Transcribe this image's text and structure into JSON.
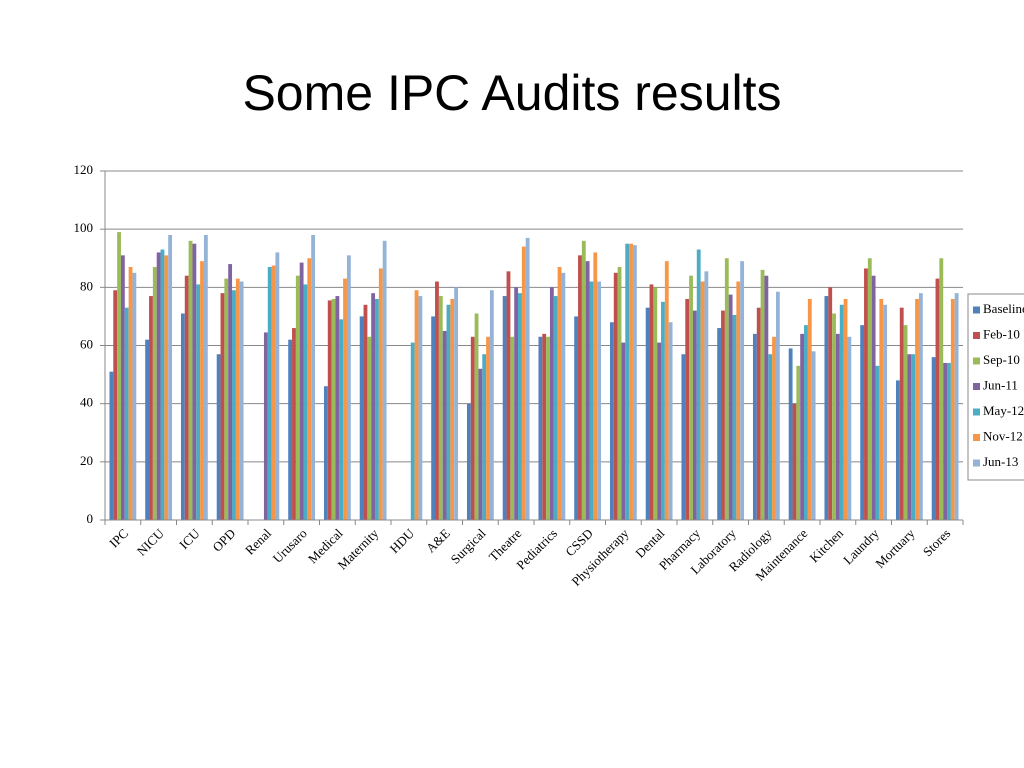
{
  "chart_data": {
    "type": "bar",
    "title": "Some IPC Audits results",
    "categories": [
      "IPC",
      "NICU",
      "ICU",
      "OPD",
      "Renal",
      "Urusaro",
      "Medical",
      "Maternity",
      "HDU",
      "A&E",
      "Surgical",
      "Theatre",
      "Pediatrics",
      "CSSD",
      "Physiotherapy",
      "Dental",
      "Pharmacy",
      "Laboratory",
      "Radiology",
      "Maintenance",
      "Kitchen",
      "Laundry",
      "Mortuary",
      "Stores"
    ],
    "series": [
      {
        "name": "Baseline",
        "color": "#4f81bd",
        "values": [
          51,
          62,
          71,
          57,
          null,
          62,
          46,
          70,
          null,
          70,
          40,
          77,
          63,
          70,
          68,
          73,
          57,
          66,
          64,
          59,
          77,
          67,
          48,
          56
        ]
      },
      {
        "name": "Feb-10",
        "color": "#c0504d",
        "values": [
          79,
          77,
          84,
          78,
          null,
          66,
          75.5,
          74,
          null,
          82,
          63,
          85.5,
          64,
          91,
          85,
          81,
          76,
          72,
          73,
          40,
          80,
          86.5,
          73,
          83
        ]
      },
      {
        "name": "Sep-10",
        "color": "#9bbb59",
        "values": [
          99,
          87,
          96,
          83,
          null,
          84,
          76,
          63,
          null,
          77,
          71,
          63,
          63,
          96,
          87,
          80,
          84,
          90,
          86,
          53,
          71,
          90,
          67,
          90
        ]
      },
      {
        "name": "Jun-11",
        "color": "#8064a2",
        "values": [
          91,
          92,
          95,
          88,
          64.5,
          88.5,
          77,
          78,
          null,
          65,
          52,
          80,
          80,
          89,
          61,
          61,
          72,
          77.5,
          84,
          64,
          64,
          84,
          57,
          54
        ]
      },
      {
        "name": "May-12",
        "color": "#4bacc6",
        "values": [
          73,
          93,
          81,
          79,
          87,
          81,
          69,
          76,
          61,
          74,
          57,
          78,
          77,
          82,
          95,
          75,
          93,
          70.5,
          57,
          67,
          74,
          53,
          57,
          54
        ]
      },
      {
        "name": "Nov-12",
        "color": "#f79646",
        "values": [
          87,
          91,
          89,
          83,
          87.5,
          90,
          83,
          86.5,
          79,
          76,
          63,
          94,
          87,
          92,
          95,
          89,
          82,
          82,
          63,
          76,
          76,
          76,
          76,
          76
        ]
      },
      {
        "name": "Jun-13",
        "color": "#95b3d7",
        "values": [
          85,
          98,
          98,
          82,
          92,
          98,
          91,
          96,
          77,
          80,
          79,
          97,
          85,
          82,
          94.5,
          68,
          85.5,
          89,
          78.5,
          58,
          63,
          74,
          78,
          78
        ]
      }
    ],
    "ylim": [
      0,
      120
    ],
    "yticks": [
      0,
      20,
      40,
      60,
      80,
      100,
      120
    ],
    "grid": true
  }
}
